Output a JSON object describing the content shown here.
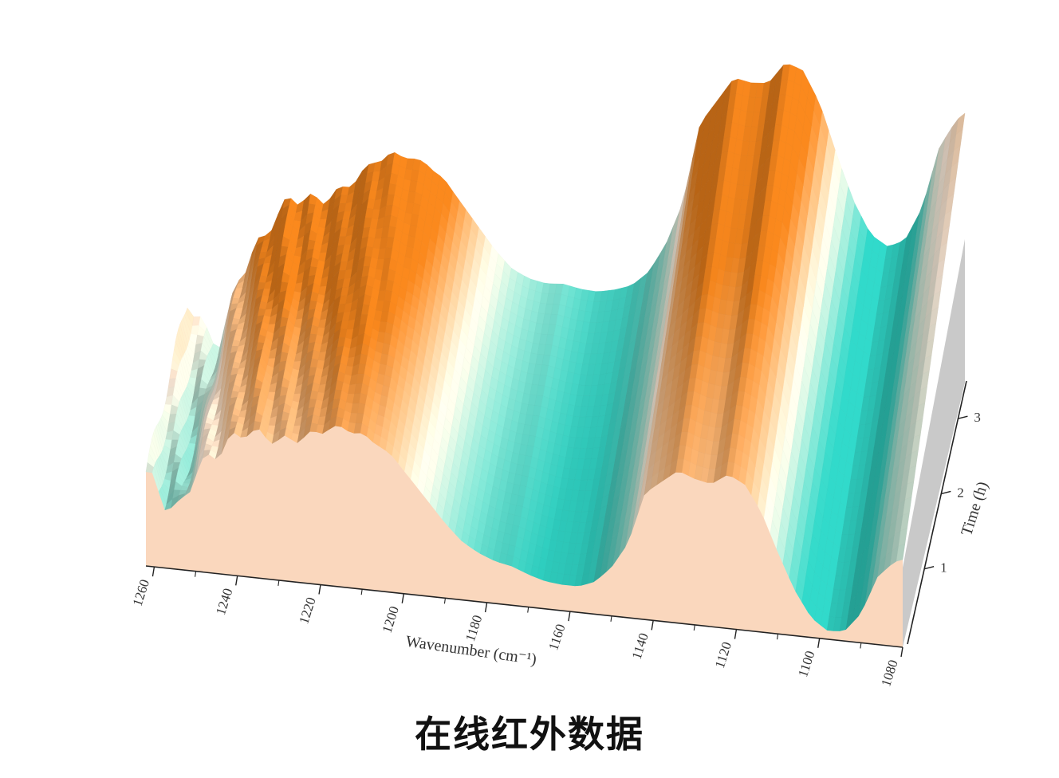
{
  "caption": "在线红外数据",
  "chart_data": {
    "type": "surface-3d",
    "title": "",
    "xlabel": "Wavenumber (cm⁻¹)",
    "ylabel": "Time (h)",
    "xlim": [
      1262,
      1080
    ],
    "ylim": [
      0,
      3.5
    ],
    "x_ticks": [
      1260,
      1240,
      1220,
      1200,
      1180,
      1160,
      1140,
      1120,
      1100,
      1080
    ],
    "y_ticks": [
      1,
      2,
      3
    ],
    "colors": {
      "high": "#e07a1a",
      "mid": "#fbe9d8",
      "low": "#2cc3b5",
      "side": "#fad7bd",
      "wall": "#c9c9c9"
    },
    "front_profile": {
      "wavenumber": [
        1262,
        1258,
        1254,
        1250,
        1246,
        1242,
        1238,
        1234,
        1230,
        1226,
        1222,
        1218,
        1214,
        1210,
        1206,
        1202,
        1198,
        1194,
        1190,
        1186,
        1182,
        1178,
        1174,
        1170,
        1166,
        1162,
        1158,
        1154,
        1150,
        1146,
        1142,
        1138,
        1134,
        1130,
        1126,
        1122,
        1118,
        1114,
        1110,
        1106,
        1102,
        1098,
        1094,
        1090,
        1086,
        1082,
        1080
      ],
      "intensity": [
        0.58,
        0.42,
        0.36,
        0.62,
        0.72,
        0.82,
        0.9,
        0.88,
        0.86,
        0.88,
        0.92,
        0.97,
        0.98,
        0.95,
        0.9,
        0.82,
        0.7,
        0.58,
        0.46,
        0.36,
        0.3,
        0.26,
        0.24,
        0.2,
        0.17,
        0.16,
        0.16,
        0.2,
        0.3,
        0.46,
        0.78,
        0.86,
        0.94,
        0.9,
        0.88,
        0.95,
        0.9,
        0.74,
        0.5,
        0.28,
        0.12,
        0.05,
        0.06,
        0.18,
        0.42,
        0.52,
        0.54
      ]
    },
    "time_factor": [
      {
        "time": 0,
        "factor": 0.82
      },
      {
        "time": 1,
        "factor": 0.9
      },
      {
        "time": 2,
        "factor": 1.0
      },
      {
        "time": 3,
        "factor": 1.12
      },
      {
        "time": 3.5,
        "factor": 1.18
      }
    ]
  }
}
